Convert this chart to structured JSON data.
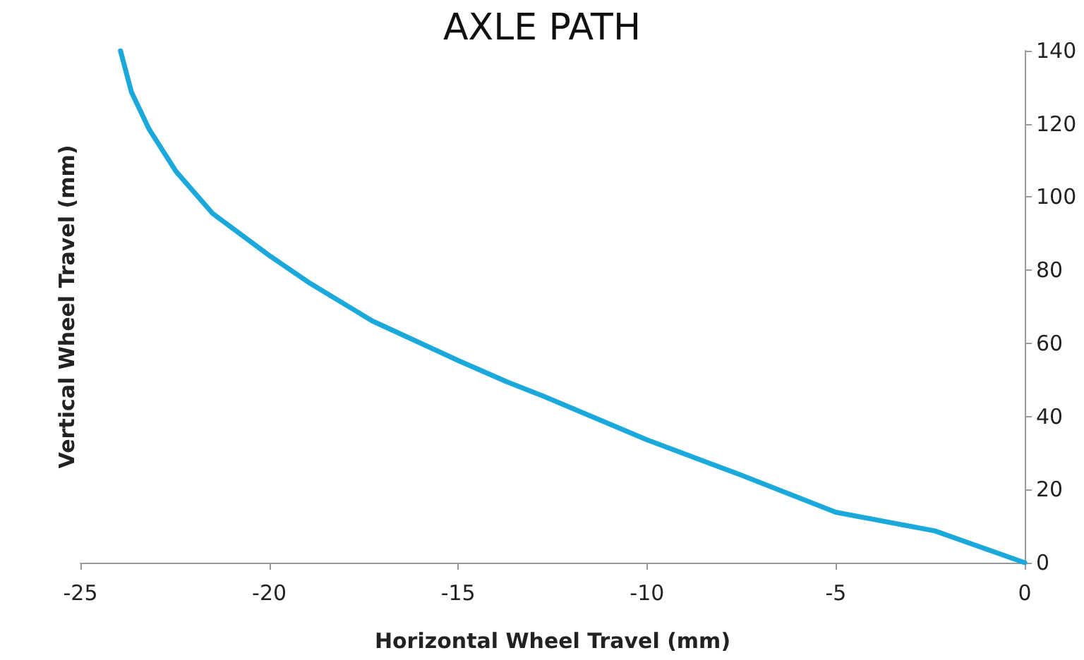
{
  "chart_data": {
    "type": "line",
    "title": "AXLE PATH",
    "xlabel": "Horizontal Wheel Travel (mm)",
    "ylabel": "Vertical Wheel Travel (mm)",
    "series": [
      {
        "color": "#1ba9dc",
        "x": [
          -23.94,
          -23.65,
          -23.18,
          -22.47,
          -21.5,
          -20,
          -18.92,
          -17.27,
          -15,
          -13.72,
          -12.78,
          -10,
          -7.52,
          -5,
          -2.38,
          0
        ],
        "values": [
          140,
          128.7,
          118.5,
          107,
          95.5,
          84,
          76.4,
          66.1,
          55.3,
          49.5,
          45.7,
          33.6,
          24,
          13.8,
          8.7,
          0
        ]
      }
    ],
    "xlim": [
      -25,
      0
    ],
    "xticks": [
      -25,
      -20,
      -15,
      -10,
      -5,
      0
    ],
    "ylim": [
      0,
      140
    ],
    "yticks": [
      0,
      20,
      40,
      60,
      80,
      100,
      120,
      140
    ],
    "grid": false,
    "marker": "none",
    "line_style": "solid"
  }
}
